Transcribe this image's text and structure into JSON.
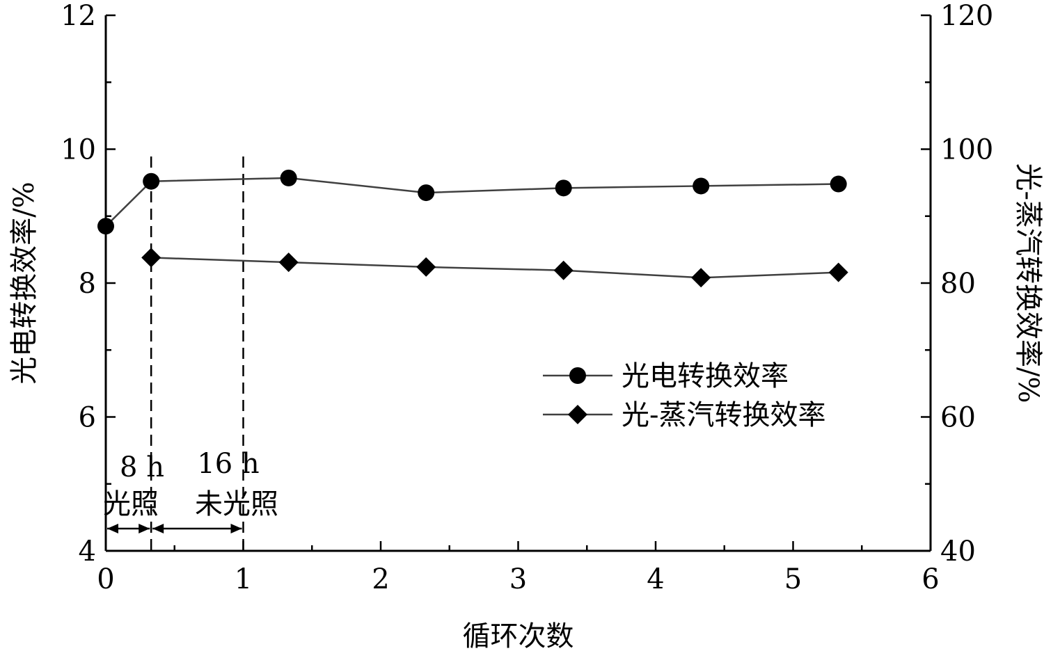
{
  "chart_data": {
    "type": "line",
    "xlabel": "循环次数",
    "ylabel_left": "光电转换效率/%",
    "ylabel_right": "光-蒸汽转换效率/%",
    "xlim": [
      0,
      6
    ],
    "ylim_left": [
      4,
      12
    ],
    "ylim_right": [
      40,
      120
    ],
    "x_ticks": [
      "0",
      "1",
      "2",
      "3",
      "4",
      "5",
      "6"
    ],
    "y_ticks_left": [
      "4",
      "6",
      "8",
      "10",
      "12"
    ],
    "y_ticks_right": [
      "40",
      "60",
      "80",
      "100",
      "120"
    ],
    "series": [
      {
        "name": "光电转换效率",
        "axis": "left",
        "marker": "circle",
        "x": [
          0,
          0.33,
          1.33,
          2.33,
          3.33,
          4.33,
          5.33
        ],
        "y": [
          8.85,
          9.52,
          9.57,
          9.35,
          9.42,
          9.45,
          9.48
        ]
      },
      {
        "name": "光-蒸汽转换效率",
        "axis": "right",
        "marker": "diamond",
        "x": [
          0.33,
          1.33,
          2.33,
          3.33,
          4.33,
          5.33
        ],
        "y": [
          83.8,
          83.1,
          82.4,
          81.9,
          80.8,
          81.6
        ]
      }
    ],
    "reference_lines_x": [
      0.33,
      1.0
    ],
    "annotations": {
      "interval_1_duration": "8 h",
      "interval_1_label": "光照",
      "interval_2_duration": "16 h",
      "interval_2_label": "未光照"
    },
    "legend_position": "center-right",
    "grid": false,
    "colors": {
      "line": "#404040",
      "marker": "#000000",
      "axis": "#000000"
    }
  }
}
